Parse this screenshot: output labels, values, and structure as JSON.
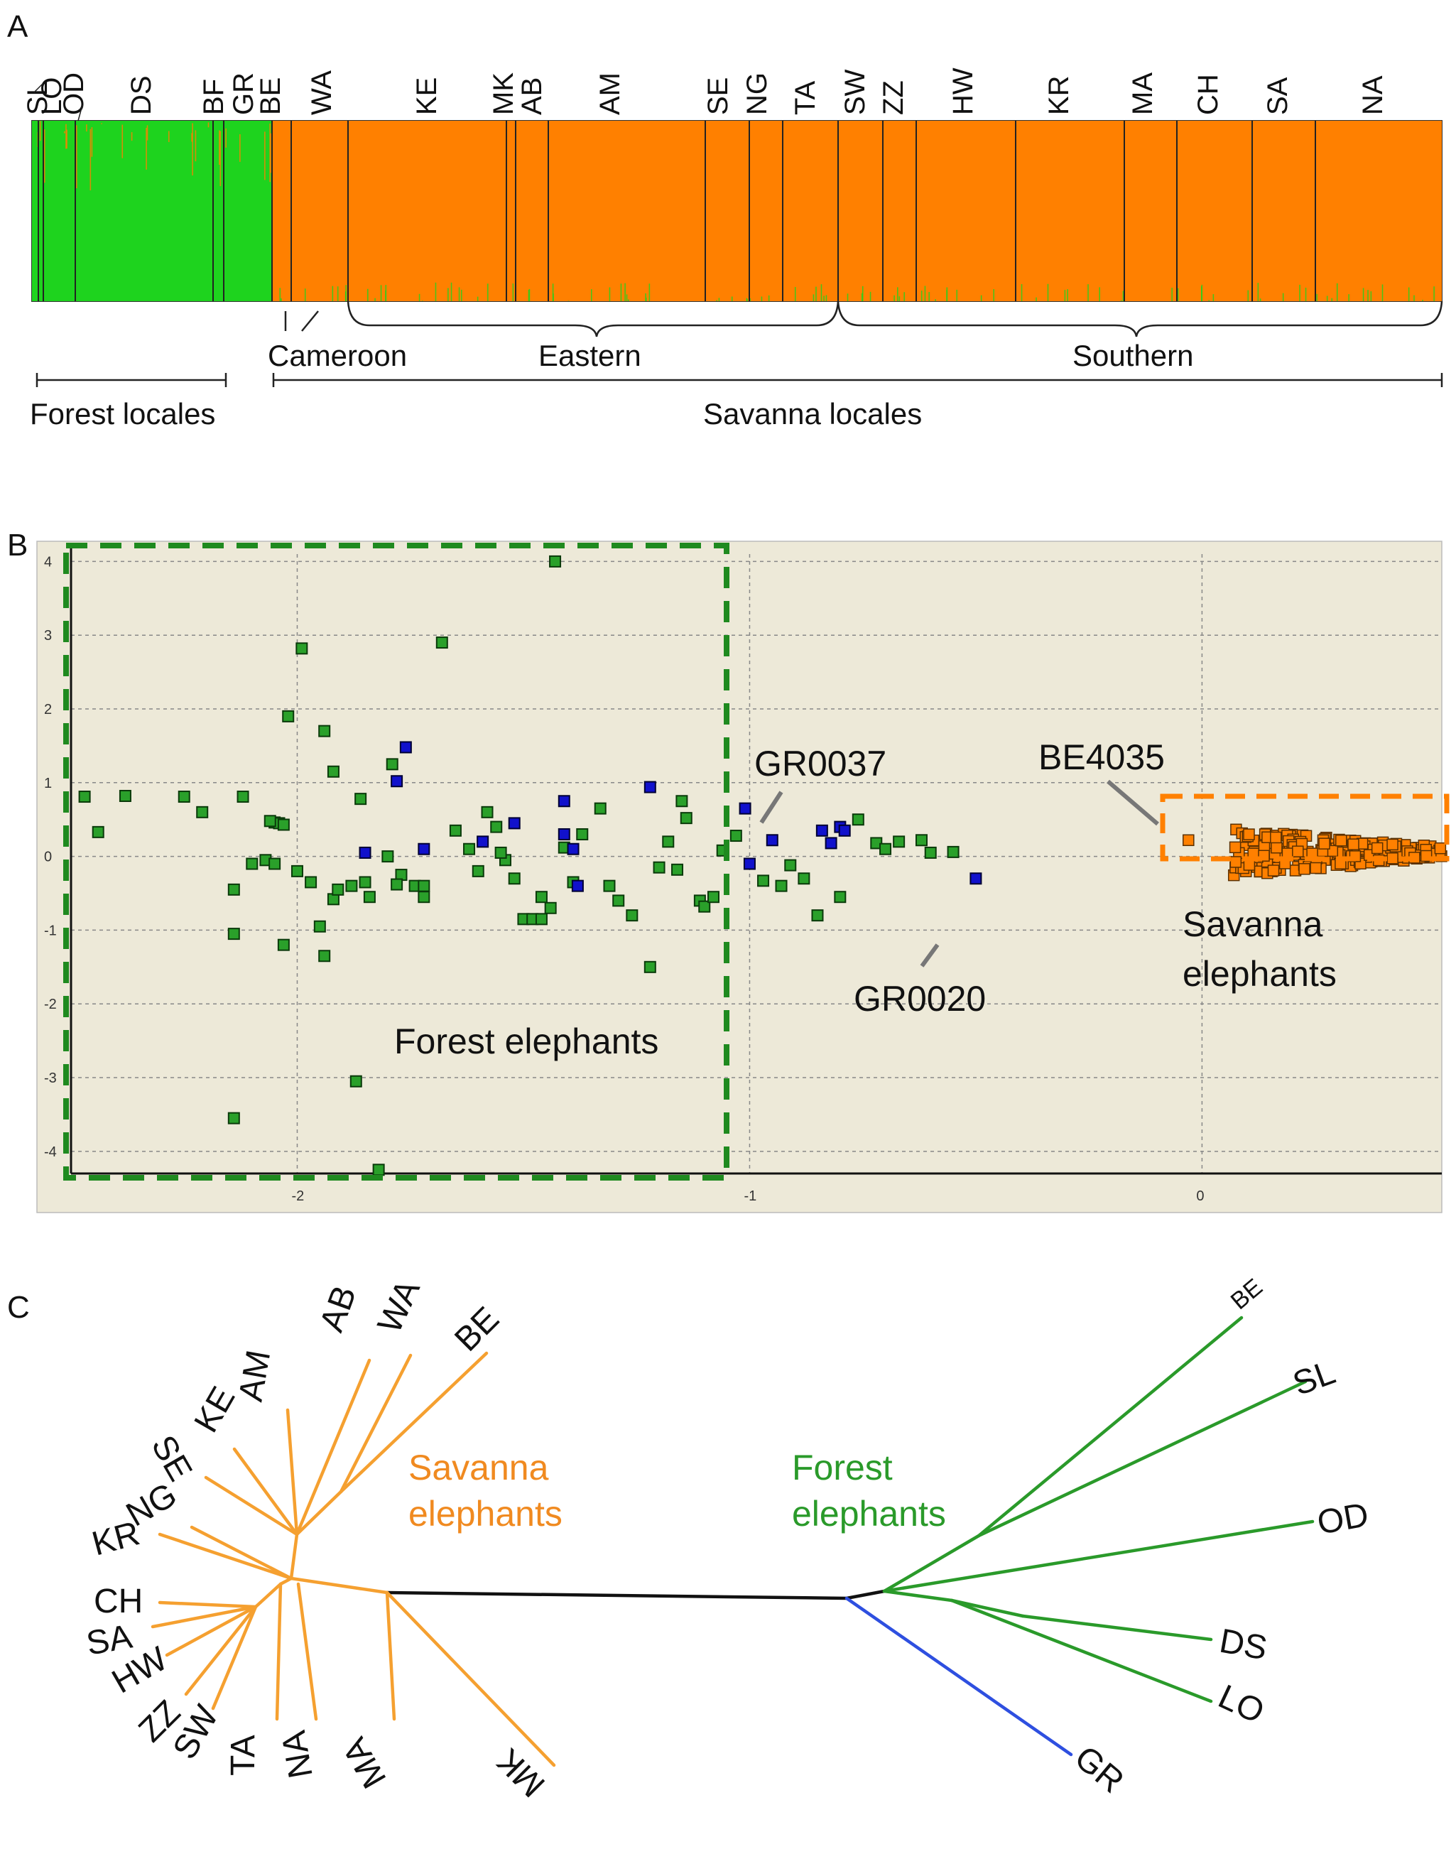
{
  "panel_labels": [
    "A",
    "B",
    "C"
  ],
  "colors": {
    "forest": "#1ed31e",
    "savanna": "#ff8000",
    "forest_dark": "#1f8a1f",
    "blue_marker": "#1111cc",
    "blue_branch": "#2e4fe0",
    "tree_orange": "#f5a030",
    "tree_green": "#2a9a2a",
    "plot_bg": "#ede9d8"
  },
  "chart_data": [
    {
      "type": "bar",
      "panel": "A",
      "description_kind": "structure_admixture",
      "locales": [
        {
          "code": "SL",
          "cluster": "forest"
        },
        {
          "code": "LO",
          "cluster": "forest"
        },
        {
          "code": "OD",
          "cluster": "forest"
        },
        {
          "code": "DS",
          "cluster": "forest"
        },
        {
          "code": "BF",
          "cluster": "forest"
        },
        {
          "code": "GR",
          "cluster": "forest"
        },
        {
          "code": "BE",
          "cluster": "savanna"
        },
        {
          "code": "WA",
          "cluster": "savanna"
        },
        {
          "code": "KE",
          "cluster": "savanna"
        },
        {
          "code": "MK",
          "cluster": "savanna"
        },
        {
          "code": "AB",
          "cluster": "savanna"
        },
        {
          "code": "AM",
          "cluster": "savanna"
        },
        {
          "code": "SE",
          "cluster": "savanna"
        },
        {
          "code": "NG",
          "cluster": "savanna"
        },
        {
          "code": "TA",
          "cluster": "savanna"
        },
        {
          "code": "SW",
          "cluster": "savanna"
        },
        {
          "code": "ZZ",
          "cluster": "savanna"
        },
        {
          "code": "HW",
          "cluster": "savanna"
        },
        {
          "code": "KR",
          "cluster": "savanna"
        },
        {
          "code": "MA",
          "cluster": "savanna"
        },
        {
          "code": "CH",
          "cluster": "savanna"
        },
        {
          "code": "SA",
          "cluster": "savanna"
        },
        {
          "code": "NA",
          "cluster": "savanna"
        }
      ],
      "region_labels": {
        "cameroon": "Cameroon",
        "eastern": "Eastern",
        "southern": "Southern"
      },
      "habitat_labels": {
        "forest": "Forest locales",
        "savanna": "Savanna locales"
      }
    },
    {
      "type": "scatter",
      "panel": "B",
      "xlim": [
        -2.5,
        0.53
      ],
      "ylim": [
        -4.3,
        4.1
      ],
      "x_ticks": [
        -2,
        -1,
        0
      ],
      "y_ticks": [
        4,
        3,
        2,
        1,
        0,
        -1,
        -2,
        -3,
        -4
      ],
      "grid": true,
      "series": [
        {
          "group": "forest",
          "points": [
            [
              -2.47,
              0.81
            ],
            [
              -2.44,
              0.33
            ],
            [
              -2.38,
              0.82
            ],
            [
              -2.25,
              0.81
            ],
            [
              -2.21,
              0.6
            ],
            [
              -2.12,
              0.81
            ],
            [
              -2.14,
              -0.45
            ],
            [
              -2.14,
              -1.05
            ],
            [
              -2.07,
              -0.05
            ],
            [
              -2.05,
              -0.1
            ],
            [
              -2.05,
              0.46
            ],
            [
              -2.04,
              0.45
            ],
            [
              -2.03,
              0.43
            ],
            [
              -2.0,
              -0.2
            ],
            [
              -1.97,
              -0.35
            ],
            [
              -1.95,
              -0.95
            ],
            [
              -1.94,
              -1.35
            ],
            [
              -1.92,
              -0.58
            ],
            [
              -1.91,
              -0.45
            ],
            [
              -1.88,
              -0.4
            ],
            [
              -1.85,
              -0.35
            ],
            [
              -1.84,
              -0.55
            ],
            [
              -1.8,
              0.0
            ],
            [
              -1.77,
              -0.25
            ],
            [
              -1.74,
              -0.4
            ],
            [
              -1.72,
              -0.55
            ],
            [
              -2.03,
              -1.2
            ],
            [
              -2.1,
              -0.1
            ],
            [
              -2.06,
              0.48
            ],
            [
              -1.99,
              2.82
            ],
            [
              -1.94,
              1.7
            ],
            [
              -1.92,
              1.15
            ],
            [
              -1.86,
              0.78
            ],
            [
              -1.79,
              1.25
            ],
            [
              -1.78,
              -0.38
            ],
            [
              -2.02,
              1.9
            ],
            [
              -1.87,
              -3.05
            ],
            [
              -1.68,
              2.9
            ],
            [
              -1.65,
              0.35
            ],
            [
              -1.62,
              0.1
            ],
            [
              -1.6,
              -0.2
            ],
            [
              -1.58,
              0.6
            ],
            [
              -1.56,
              0.4
            ],
            [
              -1.54,
              -0.05
            ],
            [
              -1.52,
              -0.3
            ],
            [
              -1.5,
              -0.85
            ],
            [
              -1.48,
              -0.85
            ],
            [
              -1.46,
              -0.55
            ],
            [
              -1.44,
              -0.7
            ],
            [
              -1.41,
              0.12
            ],
            [
              -1.39,
              -0.35
            ],
            [
              -1.37,
              0.3
            ],
            [
              -1.33,
              0.65
            ],
            [
              -1.31,
              -0.4
            ],
            [
              -1.29,
              -0.6
            ],
            [
              -1.26,
              -0.8
            ],
            [
              -1.22,
              -1.5
            ],
            [
              -1.2,
              -0.15
            ],
            [
              -1.18,
              0.2
            ],
            [
              -1.16,
              -0.18
            ],
            [
              -1.15,
              0.75
            ],
            [
              -1.14,
              0.52
            ],
            [
              -1.11,
              -0.6
            ],
            [
              -1.1,
              -0.68
            ],
            [
              -1.08,
              -0.55
            ],
            [
              -1.06,
              0.08
            ],
            [
              -1.03,
              0.28
            ],
            [
              -0.97,
              -0.33
            ],
            [
              -0.93,
              -0.4
            ],
            [
              -0.91,
              -0.12
            ],
            [
              -0.88,
              -0.3
            ],
            [
              -0.85,
              -0.8
            ],
            [
              -0.8,
              -0.55
            ],
            [
              -0.76,
              0.5
            ],
            [
              -0.72,
              0.18
            ],
            [
              -0.7,
              0.1
            ],
            [
              -0.67,
              0.2
            ],
            [
              -0.62,
              0.22
            ],
            [
              -0.6,
              0.05
            ],
            [
              -0.55,
              0.06
            ],
            [
              -1.43,
              4.0
            ],
            [
              -2.14,
              -3.55
            ],
            [
              -1.82,
              -4.25
            ],
            [
              -1.46,
              -0.85
            ],
            [
              -1.72,
              -0.4
            ],
            [
              -1.55,
              0.05
            ]
          ]
        },
        {
          "group": "blue",
          "points": [
            [
              -1.85,
              0.05
            ],
            [
              -1.78,
              1.02
            ],
            [
              -1.76,
              1.48
            ],
            [
              -1.72,
              0.1
            ],
            [
              -1.59,
              0.2
            ],
            [
              -1.52,
              0.45
            ],
            [
              -1.41,
              0.75
            ],
            [
              -1.41,
              0.3
            ],
            [
              -1.39,
              0.1
            ],
            [
              -1.38,
              -0.4
            ],
            [
              -1.22,
              0.94
            ],
            [
              -1.01,
              0.65
            ],
            [
              -1.0,
              -0.1
            ],
            [
              -0.84,
              0.35
            ],
            [
              -0.82,
              0.18
            ],
            [
              -0.8,
              0.4
            ],
            [
              -0.79,
              0.35
            ],
            [
              -0.95,
              0.22
            ],
            [
              -0.5,
              -0.3
            ]
          ]
        },
        {
          "group": "savanna",
          "x_range": [
            -0.03,
            0.53
          ],
          "y_range": [
            -0.35,
            0.4
          ],
          "count": 220
        }
      ],
      "annotations": [
        {
          "text": "GR0037",
          "x": -0.95,
          "y": 0.22
        },
        {
          "text": "GR0020",
          "x": -0.5,
          "y": -0.3
        },
        {
          "text": "BE4035",
          "x": -0.03,
          "y": 0.22
        }
      ],
      "group_labels": {
        "forest": "Forest elephants",
        "savanna_line1": "Savanna",
        "savanna_line2": "elephants"
      }
    },
    {
      "type": "tree",
      "panel": "C",
      "savanna_leaves": [
        "BE",
        "WA",
        "AB",
        "AM",
        "KE",
        "SE",
        "NG",
        "KR",
        "CH",
        "SA",
        "HW",
        "ZZ",
        "SW",
        "TA",
        "NA",
        "MA",
        "MK"
      ],
      "forest_leaves": [
        "BE",
        "SL",
        "OD",
        "DS",
        "LO",
        "GR"
      ],
      "clade_labels": {
        "savanna_line1": "Savanna",
        "savanna_line2": "elephants",
        "forest_line1": "Forest",
        "forest_line2": "elephants"
      }
    }
  ]
}
